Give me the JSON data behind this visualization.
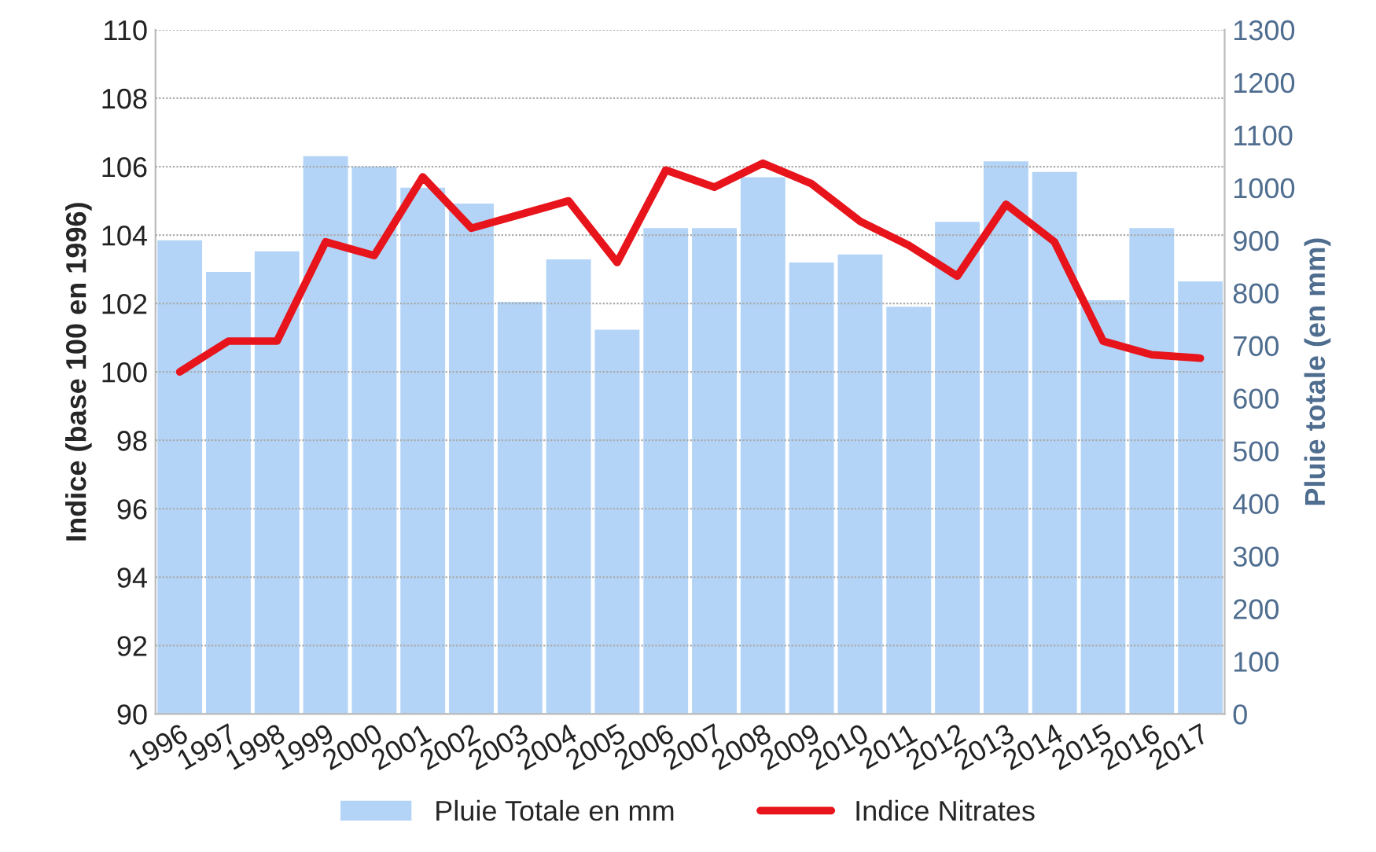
{
  "chart_data": {
    "type": "bar",
    "categories": [
      "1996",
      "1997",
      "1998",
      "1999",
      "2000",
      "2001",
      "2002",
      "2003",
      "2004",
      "2005",
      "2006",
      "2007",
      "2008",
      "2009",
      "2010",
      "2011",
      "2012",
      "2013",
      "2014",
      "2015",
      "2016",
      "2017"
    ],
    "series": [
      {
        "name": "Pluie Totale en mm",
        "axis": "y2",
        "color": "#b3d4f7",
        "values": [
          900,
          840,
          879,
          1060,
          1040,
          1000,
          970,
          783,
          864,
          730,
          923,
          923,
          1020,
          858,
          873,
          774,
          935,
          1050,
          1030,
          786,
          923,
          822
        ]
      },
      {
        "name": "Indice Nitrates",
        "type": "line",
        "axis": "y",
        "color": "#e8141c",
        "values": [
          100.0,
          100.9,
          100.9,
          103.8,
          103.4,
          105.7,
          104.2,
          104.6,
          105.0,
          103.2,
          105.9,
          105.4,
          106.1,
          105.5,
          104.4,
          103.7,
          102.8,
          104.9,
          103.8,
          100.9,
          100.5,
          100.4
        ]
      }
    ],
    "ylabel": "Indice (base 100 en 1996)",
    "y2label": "Pluie totale (en mm)",
    "ylim": [
      90,
      110
    ],
    "yticks": [
      90,
      92,
      94,
      96,
      98,
      100,
      102,
      104,
      106,
      108,
      110
    ],
    "y2lim": [
      0,
      1300
    ],
    "y2ticks": [
      0,
      100,
      200,
      300,
      400,
      500,
      600,
      700,
      800,
      900,
      1000,
      1100,
      1200,
      1300
    ],
    "grid": "y",
    "legend": "bottom",
    "marker": "none",
    "line_style": "solid"
  }
}
